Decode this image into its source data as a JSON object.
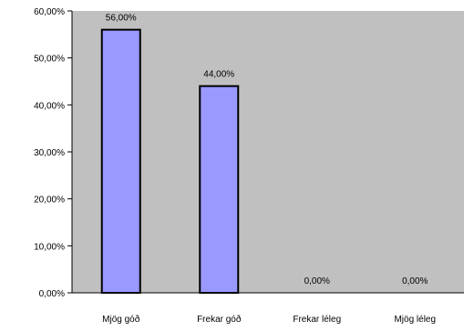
{
  "chart_data": {
    "type": "bar",
    "categories": [
      "Mjög góð",
      "Frekar góð",
      "Frekar léleg",
      "Mjög léleg"
    ],
    "values": [
      56.0,
      44.0,
      0.0,
      0.0
    ],
    "data_labels": [
      "56,00%",
      "44,00%",
      "0,00%",
      "0,00%"
    ],
    "yticks": [
      0,
      10,
      20,
      30,
      40,
      50,
      60
    ],
    "ytick_labels": [
      "0,00%",
      "10,00%",
      "20,00%",
      "30,00%",
      "40,00%",
      "50,00%",
      "60,00%"
    ],
    "ylim": [
      0,
      60
    ],
    "title": "",
    "xlabel": "",
    "ylabel": "",
    "grid": false,
    "legend": "none",
    "colors": {
      "plot_background": "#c0c0c0",
      "bar_fill": "#9999ff",
      "bar_stroke": "#000000"
    }
  }
}
